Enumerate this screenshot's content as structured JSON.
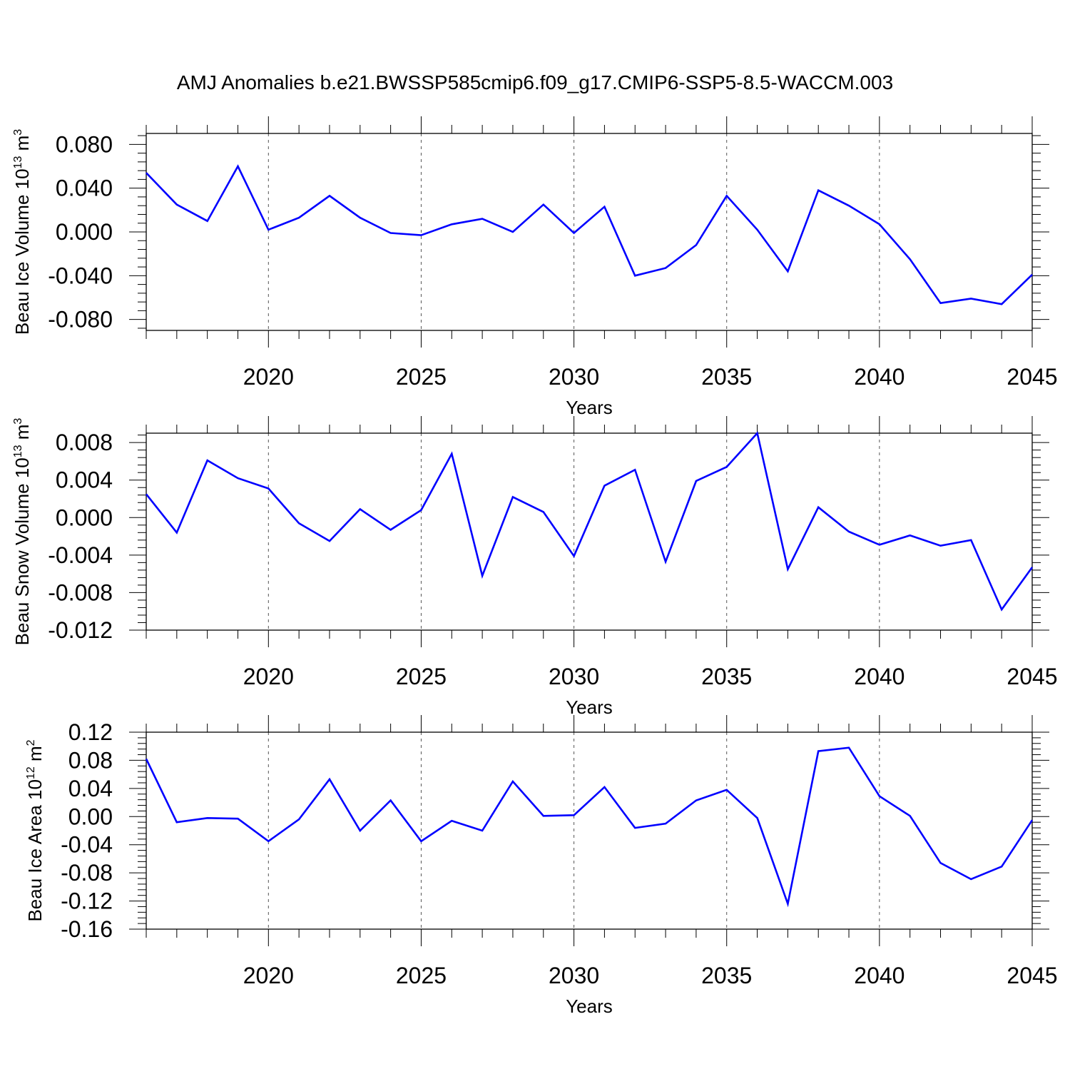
{
  "title": "AMJ Anomalies b.e21.BWSSP585cmip6.f09_g17.CMIP6-SSP5-8.5-WACCM.003",
  "line_color": "#0000ff",
  "chart_data": [
    {
      "type": "line",
      "ylabel_main": "Beau Ice Volume 10",
      "ylabel_exp": "13",
      "ylabel_unit": " m",
      "ylabel_unit_exp": "3",
      "xlabel": "Years",
      "xlim": [
        2016,
        2045
      ],
      "ylim": [
        -0.09,
        0.09
      ],
      "xticks": [
        2020,
        2025,
        2030,
        2035,
        2040,
        2045
      ],
      "xtick_labels": [
        "2020",
        "2025",
        "2030",
        "2035",
        "2040",
        "2045"
      ],
      "yticks": [
        -0.08,
        -0.04,
        0.0,
        0.04,
        0.08
      ],
      "ytick_labels": [
        "-0.080",
        "-0.040",
        "0.000",
        "0.040",
        "0.080"
      ],
      "x": [
        2016,
        2017,
        2018,
        2019,
        2020,
        2021,
        2022,
        2023,
        2024,
        2025,
        2026,
        2027,
        2028,
        2029,
        2030,
        2031,
        2032,
        2033,
        2034,
        2035,
        2036,
        2037,
        2038,
        2039,
        2040,
        2041,
        2042,
        2043,
        2044,
        2045
      ],
      "values": [
        0.054,
        0.025,
        0.01,
        0.06,
        0.002,
        0.013,
        0.033,
        0.013,
        -0.001,
        -0.003,
        0.007,
        0.012,
        0.0,
        0.025,
        -0.001,
        0.023,
        -0.04,
        -0.033,
        -0.012,
        0.033,
        0.002,
        -0.036,
        0.038,
        0.024,
        0.007,
        -0.025,
        -0.065,
        -0.061,
        -0.066,
        -0.039
      ]
    },
    {
      "type": "line",
      "ylabel_main": "Beau Snow Volume 10",
      "ylabel_exp": "13",
      "ylabel_unit": " m",
      "ylabel_unit_exp": "3",
      "xlabel": "Years",
      "xlim": [
        2016,
        2045
      ],
      "ylim": [
        -0.012,
        0.009
      ],
      "xticks": [
        2020,
        2025,
        2030,
        2035,
        2040,
        2045
      ],
      "xtick_labels": [
        "2020",
        "2025",
        "2030",
        "2035",
        "2040",
        "2045"
      ],
      "yticks": [
        -0.012,
        -0.008,
        -0.004,
        0.0,
        0.004,
        0.008
      ],
      "ytick_labels": [
        "-0.012",
        "-0.008",
        "-0.004",
        "0.000",
        "0.004",
        "0.008"
      ],
      "x": [
        2016,
        2017,
        2018,
        2019,
        2020,
        2021,
        2022,
        2023,
        2024,
        2025,
        2026,
        2027,
        2028,
        2029,
        2030,
        2031,
        2032,
        2033,
        2034,
        2035,
        2036,
        2037,
        2038,
        2039,
        2040,
        2041,
        2042,
        2043,
        2044,
        2045
      ],
      "values": [
        0.0025,
        -0.0016,
        0.0061,
        0.0042,
        0.0031,
        -0.0006,
        -0.0025,
        0.0009,
        -0.0013,
        0.0008,
        0.0068,
        -0.0062,
        0.0022,
        0.0006,
        -0.0041,
        0.0034,
        0.0051,
        -0.0047,
        0.0039,
        0.0054,
        0.009,
        -0.0055,
        0.0011,
        -0.0015,
        -0.0029,
        -0.0019,
        -0.003,
        -0.0024,
        -0.0098,
        -0.0053
      ]
    },
    {
      "type": "line",
      "ylabel_main": "Beau Ice Area 10",
      "ylabel_exp": "12",
      "ylabel_unit": " m",
      "ylabel_unit_exp": "2",
      "xlabel": "Years",
      "xlim": [
        2016,
        2045
      ],
      "ylim": [
        -0.16,
        0.12
      ],
      "xticks": [
        2020,
        2025,
        2030,
        2035,
        2040,
        2045
      ],
      "xtick_labels": [
        "2020",
        "2025",
        "2030",
        "2035",
        "2040",
        "2045"
      ],
      "yticks": [
        -0.16,
        -0.12,
        -0.08,
        -0.04,
        0.0,
        0.04,
        0.08,
        0.12
      ],
      "ytick_labels": [
        "-0.16",
        "-0.12",
        "-0.08",
        "-0.04",
        "0.00",
        "0.04",
        "0.08",
        "0.12"
      ],
      "x": [
        2016,
        2017,
        2018,
        2019,
        2020,
        2021,
        2022,
        2023,
        2024,
        2025,
        2026,
        2027,
        2028,
        2029,
        2030,
        2031,
        2032,
        2033,
        2034,
        2035,
        2036,
        2037,
        2038,
        2039,
        2040,
        2041,
        2042,
        2043,
        2044,
        2045
      ],
      "values": [
        0.082,
        -0.008,
        -0.002,
        -0.003,
        -0.035,
        -0.004,
        0.053,
        -0.02,
        0.023,
        -0.035,
        -0.006,
        -0.02,
        0.05,
        0.001,
        0.002,
        0.042,
        -0.016,
        -0.01,
        0.023,
        0.038,
        -0.002,
        -0.124,
        0.093,
        0.098,
        0.029,
        0.001,
        -0.066,
        -0.089,
        -0.071,
        -0.005
      ]
    }
  ]
}
